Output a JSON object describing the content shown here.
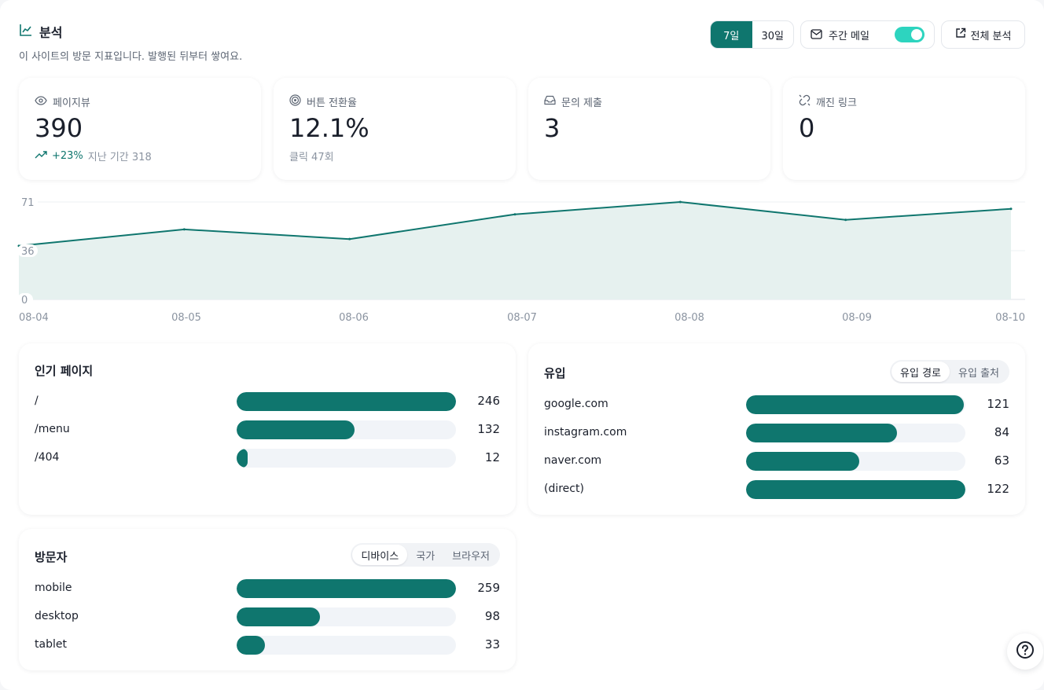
{
  "header": {
    "title": "분석",
    "subtitle": "이 사이트의 방문 지표입니다. 발행된 뒤부터 쌓여요.",
    "range_options": [
      {
        "label": "7일",
        "active": true
      },
      {
        "label": "30일",
        "active": false
      }
    ],
    "weekly_mail_label": "주간 메일",
    "weekly_mail_on": true,
    "full_analysis_label": "전체 분석"
  },
  "stats": [
    {
      "label": "페이지뷰",
      "icon": "eye-icon",
      "value": "390",
      "change": "+23%",
      "previous": "지난 기간 318"
    },
    {
      "label": "버튼 전환율",
      "icon": "target-icon",
      "value": "12.1%",
      "note": "클릭 47회"
    },
    {
      "label": "문의 제출",
      "icon": "inbox-icon",
      "value": "3"
    },
    {
      "label": "깨진 링크",
      "icon": "broken-link-icon",
      "value": "0"
    }
  ],
  "chart_data": {
    "type": "area",
    "x": [
      "08-04",
      "08-05",
      "08-06",
      "08-07",
      "08-08",
      "08-09",
      "08-10"
    ],
    "values": [
      39,
      51,
      44,
      62,
      71,
      58,
      66
    ],
    "yticks": [
      "71",
      "36",
      "0"
    ],
    "ylim": [
      0,
      71
    ],
    "grid": true
  },
  "popular_pages": {
    "title": "인기 페이지",
    "max": 246,
    "items": [
      {
        "name": "/",
        "value": 246
      },
      {
        "name": "/menu",
        "value": 132
      },
      {
        "name": "/404",
        "value": 12
      }
    ]
  },
  "referrers": {
    "title": "유입",
    "tabs": [
      {
        "label": "유입 경로",
        "active": true
      },
      {
        "label": "유입 출처",
        "active": false
      }
    ],
    "max": 122,
    "items": [
      {
        "name": "google.com",
        "value": 121
      },
      {
        "name": "instagram.com",
        "value": 84
      },
      {
        "name": "naver.com",
        "value": 63
      },
      {
        "name": "(direct)",
        "value": 122
      }
    ]
  },
  "visitors": {
    "title": "방문자",
    "tabs": [
      {
        "label": "디바이스",
        "active": true
      },
      {
        "label": "국가",
        "active": false
      },
      {
        "label": "브라우저",
        "active": false
      }
    ],
    "max": 259,
    "items": [
      {
        "name": "mobile",
        "value": 259
      },
      {
        "name": "desktop",
        "value": 98
      },
      {
        "name": "tablet",
        "value": 33
      }
    ]
  },
  "colors": {
    "accent": "#0f766e",
    "toggle": "#2dd4bf",
    "area_fill": "#e6f1ef"
  }
}
